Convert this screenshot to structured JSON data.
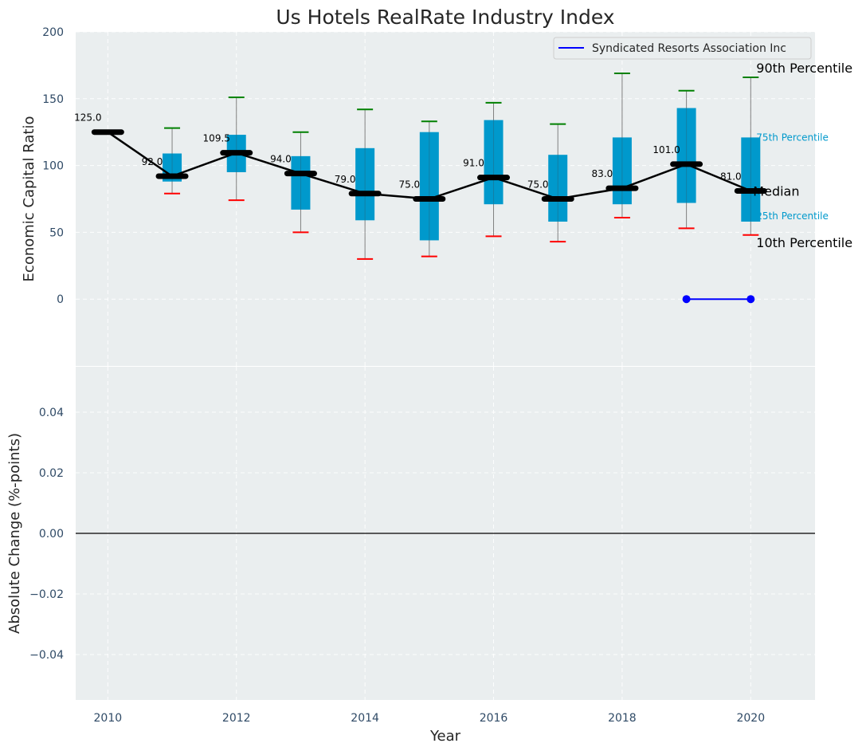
{
  "chart_data": [
    {
      "panel": "top",
      "type": "box",
      "title": "Us Hotels RealRate Industry Index",
      "xlabel": "",
      "ylabel": "Economic Capital Ratio",
      "ylim": [
        -50,
        200
      ],
      "yticks": [
        0,
        50,
        100,
        150,
        200
      ],
      "xlim": [
        2009.5,
        2021
      ],
      "years": [
        2010,
        2011,
        2012,
        2013,
        2014,
        2015,
        2016,
        2017,
        2018,
        2019,
        2020
      ],
      "p10": [
        null,
        79,
        74,
        50,
        30,
        32,
        47,
        43,
        61,
        53,
        48
      ],
      "p25": [
        null,
        88,
        95,
        67,
        59,
        44,
        71,
        58,
        71,
        72,
        58
      ],
      "median": [
        125,
        92,
        109.5,
        94,
        79,
        75,
        91,
        75,
        83,
        101,
        81
      ],
      "median_labels": [
        "125.0",
        "92.0",
        "109.5",
        "94.0",
        "79.0",
        "75.0",
        "91.0",
        "75.0",
        "83.0",
        "101.0",
        "81.0"
      ],
      "p75": [
        null,
        109,
        123,
        107,
        113,
        125,
        134,
        108,
        121,
        143,
        121
      ],
      "p90": [
        null,
        128,
        151,
        125,
        142,
        133,
        147,
        131,
        169,
        156,
        166
      ],
      "company": {
        "name": "Syndicated Resorts Association Inc",
        "years": [
          2019,
          2020
        ],
        "values": [
          0,
          0
        ]
      },
      "percentile_labels": {
        "p90": "90th Percentile",
        "p75": "75th Percentile",
        "median": "Median",
        "p25": "25th Percentile",
        "p10": "10th Percentile"
      },
      "legend_position": "upper right",
      "grid": true,
      "colors": {
        "box": "#0099cc",
        "median_line": "#000000",
        "p90_cap": "#008000",
        "p10_cap": "#ff0000",
        "whisker": "#808080",
        "company": "#0000ff",
        "background": "#eaeeef",
        "grid": "#ffffff"
      }
    },
    {
      "panel": "bottom",
      "type": "line",
      "xlabel": "Year",
      "ylabel": "Absolute Change (%-points)",
      "ylim": [
        -0.055,
        0.055
      ],
      "yticks": [
        -0.04,
        -0.02,
        0.0,
        0.02,
        0.04
      ],
      "ytick_labels": [
        "−0.04",
        "−0.02",
        "0.00",
        "0.02",
        "0.04"
      ],
      "xlim": [
        2009.5,
        2021
      ],
      "xticks": [
        2010,
        2012,
        2014,
        2016,
        2018,
        2020
      ],
      "xtick_labels": [
        "2010",
        "2012",
        "2014",
        "2016",
        "2018",
        "2020"
      ],
      "series": [],
      "zero_line": true,
      "grid": true
    }
  ]
}
